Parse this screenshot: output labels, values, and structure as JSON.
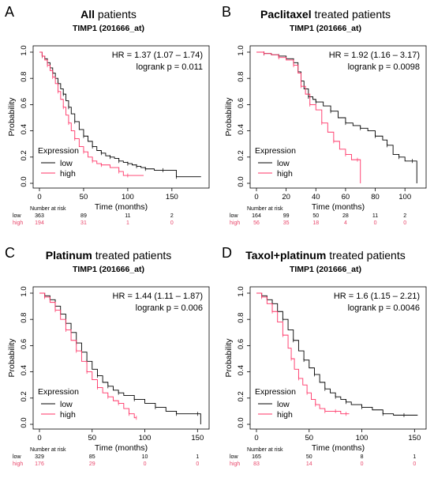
{
  "panels": [
    {
      "letter": "A",
      "title_bold": "All",
      "title_rest": " patients",
      "subtitle": "TIMP1 (201666_at)",
      "hr": "HR = 1.37 (1.07 – 1.74)",
      "logrank": "logrank p = 0.011",
      "risk_low": [
        "363",
        "89",
        "11",
        "2"
      ],
      "risk_high": [
        "194",
        "31",
        "1",
        "0"
      ]
    },
    {
      "letter": "B",
      "title_bold": "Paclitaxel",
      "title_rest": " treated patients",
      "subtitle": "TIMP1 (201666_at)",
      "hr": "HR = 1.92 (1.16 – 3.17)",
      "logrank": "logrank p = 0.0098",
      "risk_low": [
        "164",
        "99",
        "50",
        "28",
        "11",
        "2"
      ],
      "risk_high": [
        "56",
        "35",
        "18",
        "4",
        "0",
        "0"
      ]
    },
    {
      "letter": "C",
      "title_bold": "Platinum",
      "title_rest": " treated patients",
      "subtitle": "TIMP1 (201666_at)",
      "hr": "HR = 1.44 (1.11 – 1.87)",
      "logrank": "logrank p = 0.006",
      "risk_low": [
        "329",
        "85",
        "10",
        "1"
      ],
      "risk_high": [
        "176",
        "29",
        "0",
        "0"
      ]
    },
    {
      "letter": "D",
      "title_bold": "Taxol+platinum",
      "title_rest": " treated patients",
      "subtitle": "TIMP1 (201666_at)",
      "hr": "HR = 1.6 (1.15 – 2.21)",
      "logrank": "logrank p = 0.0046",
      "risk_low": [
        "165",
        "50",
        "8",
        "1"
      ],
      "risk_high": [
        "83",
        "14",
        "0",
        "0"
      ]
    }
  ],
  "common": {
    "ylabel": "Probability",
    "xlabel": "Time (months)",
    "legend_title": "Expression",
    "legend_low": "low",
    "legend_high": "high",
    "risk_header": "Number at risk",
    "risk_low_label": "low",
    "risk_high_label": "high",
    "colors": {
      "low": "#000000",
      "high": "#ff3366",
      "risk_high_text": "#e8476b"
    }
  },
  "chart_data": [
    {
      "type": "line",
      "panel": "A",
      "xlim": [
        0,
        185
      ],
      "ylim": [
        0,
        1
      ],
      "xticks": [
        0,
        50,
        100,
        150
      ],
      "yticks": [
        0.0,
        0.2,
        0.4,
        0.6,
        0.8,
        1.0
      ],
      "series": [
        {
          "name": "low",
          "color": "#000000",
          "x": [
            0,
            3,
            6,
            9,
            12,
            15,
            18,
            21,
            24,
            27,
            30,
            33,
            36,
            40,
            45,
            50,
            55,
            60,
            65,
            70,
            75,
            80,
            85,
            90,
            95,
            100,
            105,
            110,
            115,
            120,
            130,
            140,
            150,
            155,
            183
          ],
          "y": [
            1.0,
            0.97,
            0.95,
            0.92,
            0.88,
            0.84,
            0.8,
            0.76,
            0.72,
            0.68,
            0.63,
            0.58,
            0.53,
            0.47,
            0.41,
            0.36,
            0.32,
            0.28,
            0.25,
            0.23,
            0.21,
            0.2,
            0.19,
            0.17,
            0.16,
            0.15,
            0.14,
            0.13,
            0.12,
            0.11,
            0.1,
            0.1,
            0.1,
            0.05,
            0.05
          ]
        },
        {
          "name": "high",
          "color": "#ff3366",
          "x": [
            0,
            3,
            6,
            9,
            12,
            15,
            18,
            21,
            24,
            27,
            30,
            33,
            36,
            40,
            45,
            50,
            55,
            60,
            65,
            70,
            80,
            90,
            95,
            100,
            118
          ],
          "y": [
            1.0,
            0.97,
            0.94,
            0.9,
            0.86,
            0.81,
            0.76,
            0.7,
            0.64,
            0.58,
            0.52,
            0.46,
            0.4,
            0.34,
            0.28,
            0.24,
            0.2,
            0.17,
            0.15,
            0.14,
            0.12,
            0.09,
            0.06,
            0.06,
            0.06
          ]
        }
      ]
    },
    {
      "type": "line",
      "panel": "B",
      "xlim": [
        0,
        110
      ],
      "ylim": [
        0,
        1
      ],
      "xticks": [
        0,
        20,
        40,
        60,
        80,
        100
      ],
      "yticks": [
        0.0,
        0.2,
        0.4,
        0.6,
        0.8,
        1.0
      ],
      "series": [
        {
          "name": "low",
          "color": "#000000",
          "x": [
            0,
            5,
            10,
            15,
            20,
            25,
            28,
            30,
            32,
            35,
            38,
            40,
            45,
            50,
            55,
            60,
            65,
            70,
            75,
            80,
            85,
            88,
            92,
            96,
            100,
            105,
            108
          ],
          "y": [
            1.0,
            0.99,
            0.98,
            0.97,
            0.95,
            0.92,
            0.85,
            0.78,
            0.72,
            0.66,
            0.64,
            0.62,
            0.59,
            0.55,
            0.5,
            0.46,
            0.44,
            0.42,
            0.4,
            0.36,
            0.33,
            0.29,
            0.22,
            0.2,
            0.17,
            0.17,
            0.0
          ]
        },
        {
          "name": "high",
          "color": "#ff3366",
          "x": [
            0,
            5,
            10,
            15,
            20,
            25,
            28,
            30,
            33,
            36,
            40,
            44,
            48,
            52,
            56,
            60,
            64,
            68,
            70
          ],
          "y": [
            1.0,
            0.99,
            0.98,
            0.96,
            0.94,
            0.9,
            0.84,
            0.74,
            0.68,
            0.6,
            0.56,
            0.46,
            0.39,
            0.32,
            0.26,
            0.22,
            0.18,
            0.18,
            0.0
          ]
        }
      ]
    },
    {
      "type": "line",
      "panel": "C",
      "xlim": [
        0,
        155
      ],
      "ylim": [
        0,
        1
      ],
      "xticks": [
        0,
        50,
        100,
        150
      ],
      "yticks": [
        0.0,
        0.2,
        0.4,
        0.6,
        0.8,
        1.0
      ],
      "series": [
        {
          "name": "low",
          "color": "#000000",
          "x": [
            0,
            5,
            10,
            15,
            20,
            25,
            30,
            35,
            40,
            45,
            50,
            55,
            60,
            65,
            70,
            75,
            80,
            90,
            100,
            110,
            120,
            130,
            140,
            150,
            153
          ],
          "y": [
            1.0,
            0.98,
            0.95,
            0.9,
            0.84,
            0.77,
            0.7,
            0.62,
            0.55,
            0.48,
            0.42,
            0.37,
            0.32,
            0.29,
            0.26,
            0.24,
            0.22,
            0.19,
            0.16,
            0.13,
            0.1,
            0.08,
            0.08,
            0.08,
            0.0
          ]
        },
        {
          "name": "high",
          "color": "#ff3366",
          "x": [
            0,
            5,
            10,
            15,
            20,
            25,
            30,
            35,
            40,
            45,
            50,
            55,
            60,
            65,
            70,
            75,
            80,
            85,
            90,
            92
          ],
          "y": [
            1.0,
            0.97,
            0.93,
            0.87,
            0.8,
            0.72,
            0.64,
            0.56,
            0.48,
            0.4,
            0.34,
            0.28,
            0.24,
            0.21,
            0.18,
            0.16,
            0.12,
            0.08,
            0.05,
            0.05
          ]
        }
      ]
    },
    {
      "type": "line",
      "panel": "D",
      "xlim": [
        0,
        155
      ],
      "ylim": [
        0,
        1
      ],
      "xticks": [
        0,
        50,
        100,
        150
      ],
      "yticks": [
        0.0,
        0.2,
        0.4,
        0.6,
        0.8,
        1.0
      ],
      "series": [
        {
          "name": "low",
          "color": "#000000",
          "x": [
            0,
            5,
            10,
            15,
            20,
            25,
            30,
            35,
            40,
            45,
            50,
            55,
            60,
            65,
            70,
            75,
            80,
            85,
            90,
            100,
            110,
            120,
            130,
            140,
            153
          ],
          "y": [
            1.0,
            0.98,
            0.95,
            0.92,
            0.86,
            0.8,
            0.72,
            0.64,
            0.56,
            0.49,
            0.43,
            0.38,
            0.32,
            0.27,
            0.24,
            0.21,
            0.19,
            0.17,
            0.15,
            0.13,
            0.11,
            0.08,
            0.07,
            0.07,
            0.07
          ]
        },
        {
          "name": "high",
          "color": "#ff3366",
          "x": [
            0,
            5,
            10,
            15,
            20,
            25,
            30,
            33,
            36,
            40,
            44,
            48,
            52,
            56,
            60,
            65,
            70,
            75,
            80,
            85,
            88
          ],
          "y": [
            1.0,
            0.97,
            0.92,
            0.86,
            0.78,
            0.68,
            0.58,
            0.5,
            0.42,
            0.35,
            0.3,
            0.24,
            0.19,
            0.15,
            0.12,
            0.1,
            0.1,
            0.1,
            0.08,
            0.08,
            0.08
          ]
        }
      ]
    }
  ]
}
